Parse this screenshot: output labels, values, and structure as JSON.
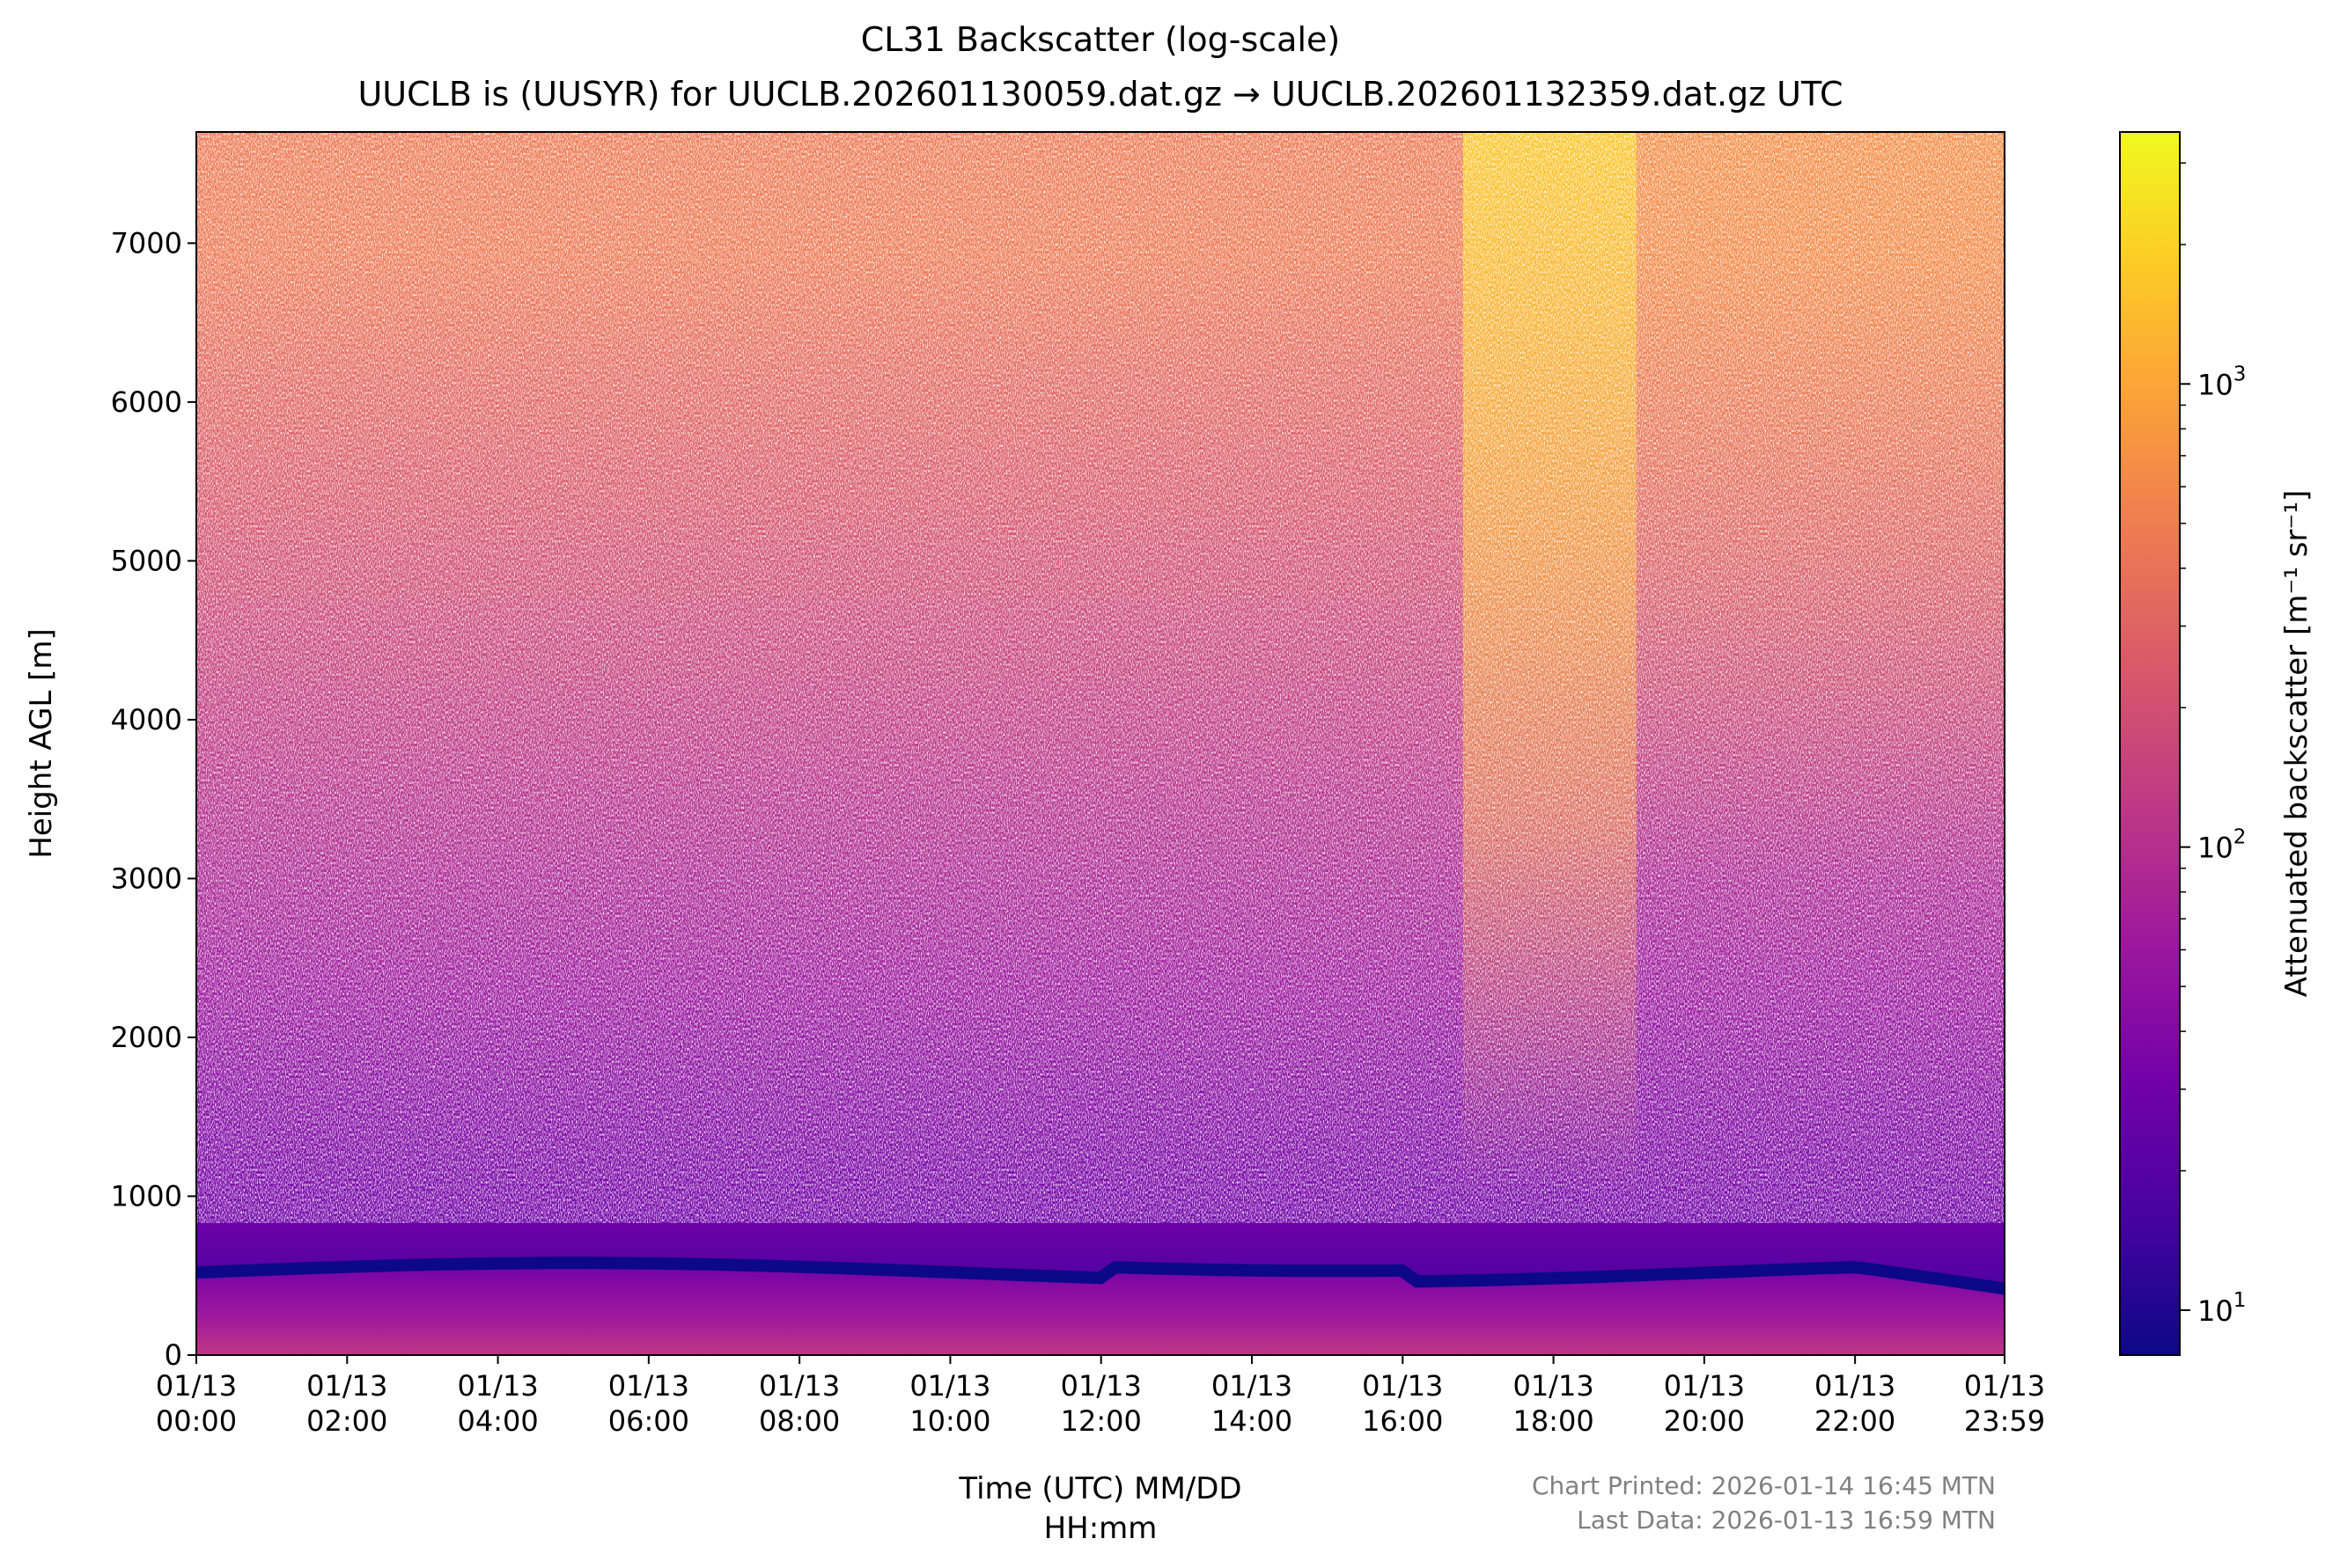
{
  "chart_data": {
    "type": "heatmap",
    "title": "CL31 Backscatter (log-scale)",
    "subtitle": "UUCLB is (UUSYR) for UUCLB.202601130059.dat.gz → UUCLB.202601132359.dat.gz UTC",
    "xlabel_line1": "Time (UTC) MM/DD",
    "xlabel_line2": "HH:mm",
    "ylabel": "Height AGL [m]",
    "colorbar_label": "Attenuated backscatter [m⁻¹ sr⁻¹]",
    "colormap": "plasma",
    "colormap_stops": [
      "#0d0887",
      "#46039f",
      "#7201a8",
      "#9c179e",
      "#bd3786",
      "#d8576b",
      "#ed7953",
      "#fb9f3a",
      "#fdca26",
      "#f0f921"
    ],
    "ylim": [
      0,
      7700
    ],
    "y_ticks": [
      "0",
      "1000",
      "2000",
      "3000",
      "4000",
      "5000",
      "6000",
      "7000"
    ],
    "y_tick_values": [
      0,
      1000,
      2000,
      3000,
      4000,
      5000,
      6000,
      7000
    ],
    "xlim_hours": [
      0,
      23.9833
    ],
    "x_ticks": [
      {
        "date": "01/13",
        "time": "00:00",
        "hour": 0
      },
      {
        "date": "01/13",
        "time": "02:00",
        "hour": 2
      },
      {
        "date": "01/13",
        "time": "04:00",
        "hour": 4
      },
      {
        "date": "01/13",
        "time": "06:00",
        "hour": 6
      },
      {
        "date": "01/13",
        "time": "08:00",
        "hour": 8
      },
      {
        "date": "01/13",
        "time": "10:00",
        "hour": 10
      },
      {
        "date": "01/13",
        "time": "12:00",
        "hour": 12
      },
      {
        "date": "01/13",
        "time": "14:00",
        "hour": 14
      },
      {
        "date": "01/13",
        "time": "16:00",
        "hour": 16
      },
      {
        "date": "01/13",
        "time": "18:00",
        "hour": 18
      },
      {
        "date": "01/13",
        "time": "20:00",
        "hour": 20
      },
      {
        "date": "01/13",
        "time": "22:00",
        "hour": 22
      },
      {
        "date": "01/13",
        "time": "23:59",
        "hour": 23.9833
      }
    ],
    "colorbar_range": [
      8,
      3500
    ],
    "colorbar_major_ticks": [
      {
        "base": "10",
        "exp": "1",
        "value": 10
      },
      {
        "base": "10",
        "exp": "2",
        "value": 100
      },
      {
        "base": "10",
        "exp": "3",
        "value": 1000
      }
    ],
    "colorbar_minor_ticks": [
      20,
      30,
      40,
      50,
      60,
      70,
      80,
      90,
      200,
      300,
      400,
      500,
      600,
      700,
      800,
      900,
      2000,
      3000
    ],
    "footer_printed": "Chart Printed: 2026-01-14 16:45 MTN",
    "footer_last_data": "Last Data: 2026-01-13 16:59 MTN"
  }
}
